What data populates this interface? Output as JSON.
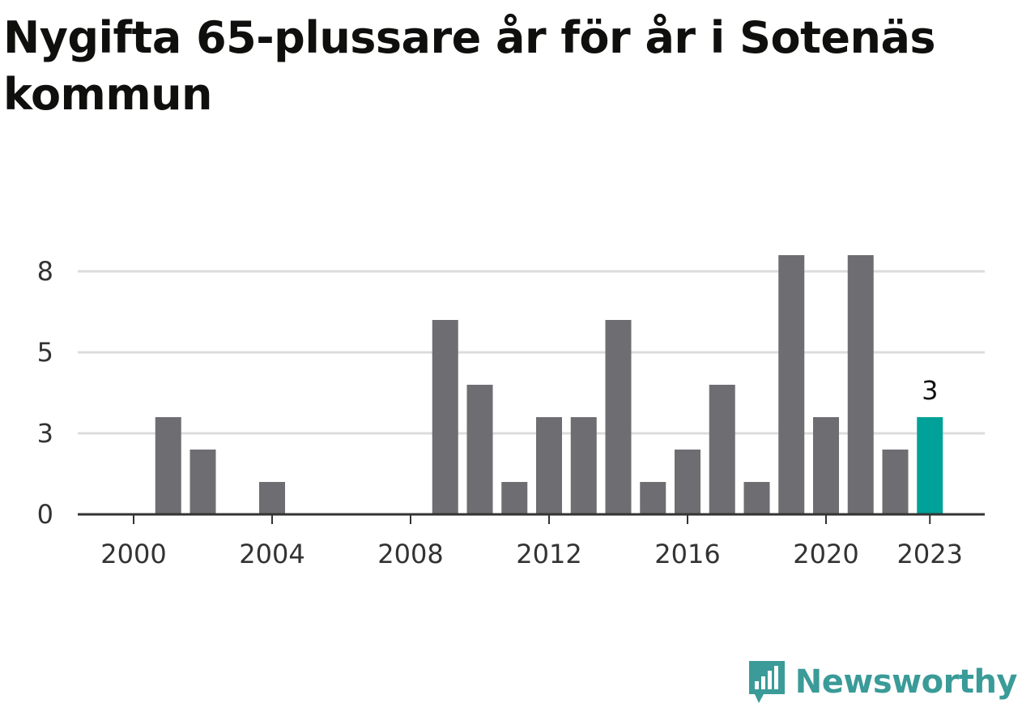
{
  "title": "Nygifta 65-plussare år för år i Sotenäs kommun",
  "colors": {
    "bar": "#6e6d72",
    "highlight": "#00a198",
    "grid": "#dcdcdc",
    "axis": "#333333",
    "brand": "#3a9b98"
  },
  "brand": {
    "name": "Newsworthy",
    "icon": "bar-chart-speech-bubble-icon"
  },
  "chart_data": {
    "type": "bar",
    "x": [
      2000,
      2001,
      2002,
      2003,
      2004,
      2005,
      2006,
      2007,
      2008,
      2009,
      2010,
      2011,
      2012,
      2013,
      2014,
      2015,
      2016,
      2017,
      2018,
      2019,
      2020,
      2021,
      2022,
      2023
    ],
    "values": [
      0,
      3,
      2,
      0,
      1,
      0,
      0,
      0,
      0,
      6,
      4,
      1,
      3,
      3,
      6,
      1,
      2,
      4,
      1,
      8,
      3,
      8,
      2,
      3
    ],
    "x_tick_labels": [
      "2000",
      "2004",
      "2008",
      "2012",
      "2016",
      "2020",
      "2023"
    ],
    "x_tick_values": [
      2000,
      2004,
      2008,
      2012,
      2016,
      2020,
      2023
    ],
    "y_tick_labels": [
      "0",
      "3",
      "5",
      "8"
    ],
    "y_tick_values": [
      0,
      2.5,
      5,
      7.5
    ],
    "ylim": [
      0,
      7.5
    ],
    "highlight": {
      "x": 2023,
      "label": "3"
    },
    "grid": true,
    "legend": "none",
    "xlabel": "",
    "ylabel": ""
  }
}
